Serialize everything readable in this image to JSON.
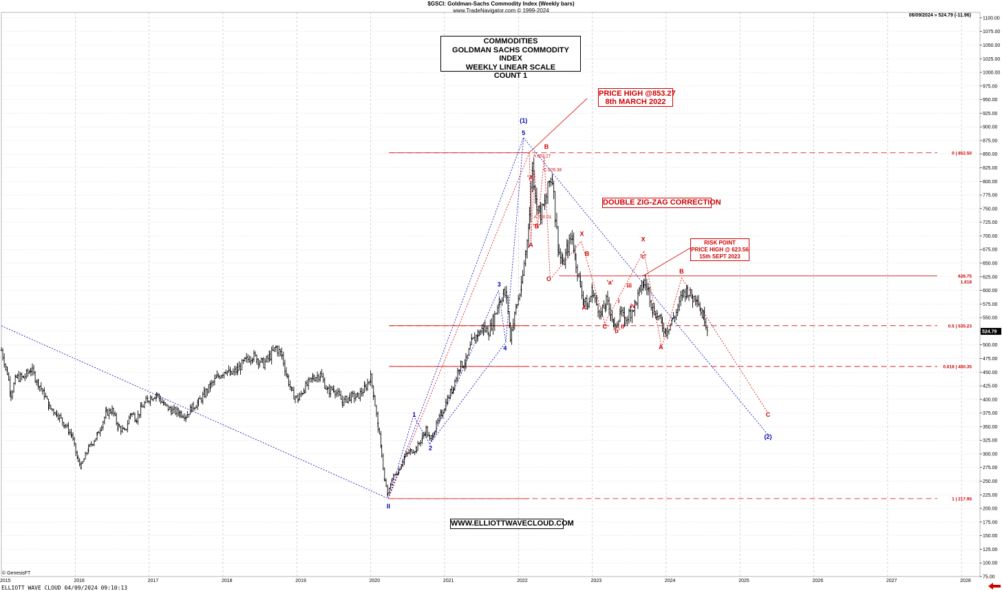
{
  "header": {
    "title": "$GSCI: Goldman-Sachs Commodity Index (Weekly bars)",
    "subtitle": "www.TradeNavigator.com © 1999-2024"
  },
  "last_readout": "06/09/2024 » 524.79 (-11.96)",
  "title_box": [
    "COMMODITIES",
    "GOLDMAN SACHS COMMODITY INDEX",
    "WEEKLY LINEAR SCALE",
    "COUNT 1"
  ],
  "annotations": {
    "price_high": [
      "PRICE HIGH @853.27",
      "8th MARCH 2022"
    ],
    "double_zigzag": "DOUBLE ZIG-ZAG CORRECTION",
    "risk_point": [
      "RISK POINT",
      "PRICE HIGH @ 623.56",
      "15th SEPT 2023"
    ],
    "website": "WWW.ELLIOTTWAVECLOUD.COM"
  },
  "footer": {
    "genesis": "© GenesisFT",
    "label": "ELLIOTT WAVE CLOUD   04/09/2024 09:10:13"
  },
  "colors": {
    "bars": "#000000",
    "accent_red": "#d00000",
    "accent_blue": "#0000b4",
    "grid": "#b4b4b4",
    "last_price_bg": "#000000"
  },
  "icons": {
    "footer_arrow": "left-arrow-icon"
  },
  "chart_data": {
    "type": "ohlc-weekly",
    "title": "$GSCI: Goldman-Sachs Commodity Index (Weekly bars)",
    "xlabel": "",
    "ylabel": "",
    "xlim": [
      2015.0,
      2028.25
    ],
    "ylim": [
      75,
      1110
    ],
    "y_ticks": [
      75,
      100,
      125,
      150,
      175,
      200,
      225,
      250,
      275,
      300,
      325,
      350,
      375,
      400,
      425,
      450,
      475,
      500,
      525,
      550,
      575,
      600,
      625,
      650,
      675,
      700,
      725,
      750,
      775,
      800,
      825,
      850,
      875,
      900,
      925,
      950,
      975,
      1000,
      1025,
      1050,
      1075,
      1100
    ],
    "x_ticks": [
      {
        "x": 2015,
        "label": "2015"
      },
      {
        "x": 2016,
        "label": "2016"
      },
      {
        "x": 2017,
        "label": "2017"
      },
      {
        "x": 2018,
        "label": "2018"
      },
      {
        "x": 2019,
        "label": "2019"
      },
      {
        "x": 2020,
        "label": "2020"
      },
      {
        "x": 2021,
        "label": "2021"
      },
      {
        "x": 2022,
        "label": "2022"
      },
      {
        "x": 2023,
        "label": "2023"
      },
      {
        "x": 2024,
        "label": "2024"
      },
      {
        "x": 2025,
        "label": "2025"
      },
      {
        "x": 2026,
        "label": "2026"
      },
      {
        "x": 2027,
        "label": "2027"
      },
      {
        "x": 2028,
        "label": "2028"
      }
    ],
    "grid": true,
    "price_series": [
      [
        2015.0,
        490
      ],
      [
        2015.08,
        450
      ],
      [
        2015.13,
        410
      ],
      [
        2015.2,
        440
      ],
      [
        2015.3,
        440
      ],
      [
        2015.4,
        455
      ],
      [
        2015.5,
        430
      ],
      [
        2015.58,
        410
      ],
      [
        2015.65,
        385
      ],
      [
        2015.75,
        375
      ],
      [
        2015.85,
        355
      ],
      [
        2015.95,
        335
      ],
      [
        2016.04,
        285
      ],
      [
        2016.08,
        278
      ],
      [
        2016.18,
        310
      ],
      [
        2016.3,
        335
      ],
      [
        2016.42,
        375
      ],
      [
        2016.5,
        380
      ],
      [
        2016.58,
        350
      ],
      [
        2016.67,
        340
      ],
      [
        2016.75,
        375
      ],
      [
        2016.83,
        365
      ],
      [
        2016.9,
        385
      ],
      [
        2016.98,
        400
      ],
      [
        2017.1,
        410
      ],
      [
        2017.2,
        390
      ],
      [
        2017.3,
        380
      ],
      [
        2017.42,
        375
      ],
      [
        2017.5,
        370
      ],
      [
        2017.58,
        385
      ],
      [
        2017.67,
        395
      ],
      [
        2017.75,
        410
      ],
      [
        2017.83,
        425
      ],
      [
        2017.92,
        440
      ],
      [
        2018.04,
        455
      ],
      [
        2018.1,
        445
      ],
      [
        2018.2,
        455
      ],
      [
        2018.3,
        470
      ],
      [
        2018.4,
        480
      ],
      [
        2018.46,
        475
      ],
      [
        2018.55,
        465
      ],
      [
        2018.64,
        480
      ],
      [
        2018.72,
        495
      ],
      [
        2018.8,
        480
      ],
      [
        2018.87,
        440
      ],
      [
        2018.94,
        410
      ],
      [
        2019.02,
        400
      ],
      [
        2019.1,
        420
      ],
      [
        2019.22,
        440
      ],
      [
        2019.32,
        445
      ],
      [
        2019.42,
        415
      ],
      [
        2019.5,
        420
      ],
      [
        2019.62,
        395
      ],
      [
        2019.72,
        405
      ],
      [
        2019.82,
        405
      ],
      [
        2019.92,
        420
      ],
      [
        2020.0,
        440
      ],
      [
        2020.04,
        410
      ],
      [
        2020.1,
        350
      ],
      [
        2020.15,
        300
      ],
      [
        2020.19,
        250
      ],
      [
        2020.23,
        225
      ],
      [
        2020.29,
        255
      ],
      [
        2020.38,
        270
      ],
      [
        2020.46,
        295
      ],
      [
        2020.54,
        305
      ],
      [
        2020.62,
        310
      ],
      [
        2020.7,
        330
      ],
      [
        2020.75,
        345
      ],
      [
        2020.8,
        325
      ],
      [
        2020.87,
        345
      ],
      [
        2020.96,
        375
      ],
      [
        2021.04,
        400
      ],
      [
        2021.12,
        425
      ],
      [
        2021.2,
        460
      ],
      [
        2021.29,
        470
      ],
      [
        2021.37,
        505
      ],
      [
        2021.45,
        520
      ],
      [
        2021.53,
        530
      ],
      [
        2021.6,
        525
      ],
      [
        2021.66,
        545
      ],
      [
        2021.74,
        580
      ],
      [
        2021.8,
        595
      ],
      [
        2021.84,
        590
      ],
      [
        2021.89,
        515
      ],
      [
        2021.93,
        540
      ],
      [
        2021.98,
        575
      ],
      [
        2022.04,
        605
      ],
      [
        2022.1,
        670
      ],
      [
        2022.15,
        740
      ],
      [
        2022.19,
        830
      ],
      [
        2022.21,
        800
      ],
      [
        2022.25,
        760
      ],
      [
        2022.3,
        740
      ],
      [
        2022.36,
        760
      ],
      [
        2022.42,
        800
      ],
      [
        2022.46,
        810
      ],
      [
        2022.5,
        735
      ],
      [
        2022.55,
        670
      ],
      [
        2022.6,
        645
      ],
      [
        2022.67,
        680
      ],
      [
        2022.73,
        700
      ],
      [
        2022.78,
        650
      ],
      [
        2022.84,
        610
      ],
      [
        2022.89,
        580
      ],
      [
        2022.94,
        570
      ],
      [
        2023.0,
        600
      ],
      [
        2023.06,
        575
      ],
      [
        2023.12,
        555
      ],
      [
        2023.19,
        580
      ],
      [
        2023.25,
        560
      ],
      [
        2023.3,
        530
      ],
      [
        2023.38,
        560
      ],
      [
        2023.44,
        545
      ],
      [
        2023.52,
        560
      ],
      [
        2023.58,
        575
      ],
      [
        2023.65,
        600
      ],
      [
        2023.7,
        615
      ],
      [
        2023.76,
        600
      ],
      [
        2023.82,
        565
      ],
      [
        2023.88,
        555
      ],
      [
        2023.95,
        535
      ],
      [
        2024.0,
        525
      ],
      [
        2024.08,
        545
      ],
      [
        2024.16,
        565
      ],
      [
        2024.22,
        595
      ],
      [
        2024.29,
        600
      ],
      [
        2024.36,
        585
      ],
      [
        2024.42,
        590
      ],
      [
        2024.47,
        560
      ],
      [
        2024.52,
        550
      ],
      [
        2024.56,
        530
      ]
    ],
    "horizontal_levels": [
      {
        "value": 852.5,
        "label": "0 | 852.50",
        "style": "dashed",
        "x_start": 2020.25
      },
      {
        "value": 626.75,
        "label": "626.75",
        "label2": "1.618",
        "style": "solid",
        "x_start": 2022.55
      },
      {
        "value": 535.23,
        "label": "0.5 | 535.23",
        "style": "dashed",
        "x_start": 2020.25
      },
      {
        "value": 460.35,
        "label": "0.618 | 460.35",
        "style": "dashed",
        "x_start": 2020.25
      },
      {
        "value": 217.95,
        "label": "1 | 217.95",
        "style": "dashed",
        "x_start": 2020.25
      }
    ],
    "last_price": {
      "value": 524.79,
      "label": "524.79"
    },
    "wave_labels_blue": [
      {
        "x": 2020.24,
        "y": 200,
        "text": "II"
      },
      {
        "x": 2020.59,
        "y": 368,
        "text": "1"
      },
      {
        "x": 2020.81,
        "y": 307,
        "text": "2"
      },
      {
        "x": 2021.74,
        "y": 607,
        "text": "3"
      },
      {
        "x": 2021.82,
        "y": 490,
        "text": "4"
      },
      {
        "x": 2022.07,
        "y": 885,
        "text": "5"
      },
      {
        "x": 2022.07,
        "y": 908,
        "text": "(1)"
      },
      {
        "x": 2025.38,
        "y": 328,
        "text": "(2)"
      }
    ],
    "wave_labels_red": [
      {
        "x": 2022.17,
        "y": 803,
        "text": "'A'"
      },
      {
        "x": 2022.25,
        "y": 714,
        "text": "'B'"
      },
      {
        "x": 2022.17,
        "y": 680,
        "text": "A"
      },
      {
        "x": 2022.38,
        "y": 860,
        "text": "B"
      },
      {
        "x": 2022.41,
        "y": 617,
        "text": "C"
      },
      {
        "x": 2022.86,
        "y": 700,
        "text": "X"
      },
      {
        "x": 2022.93,
        "y": 663,
        "text": "B"
      },
      {
        "x": 2022.89,
        "y": 565,
        "text": "A"
      },
      {
        "x": 2023.17,
        "y": 530,
        "text": "C"
      },
      {
        "x": 2023.24,
        "y": 611,
        "text": "'a'"
      },
      {
        "x": 2023.33,
        "y": 522,
        "text": "'b'"
      },
      {
        "x": 2023.36,
        "y": 577,
        "text": "i"
      },
      {
        "x": 2023.41,
        "y": 530,
        "text": "ii"
      },
      {
        "x": 2023.5,
        "y": 605,
        "text": "iii"
      },
      {
        "x": 2023.55,
        "y": 568,
        "text": "iv"
      },
      {
        "x": 2023.69,
        "y": 690,
        "text": "X"
      },
      {
        "x": 2023.69,
        "y": 658,
        "text": "'c'"
      },
      {
        "x": 2023.93,
        "y": 492,
        "text": "A"
      },
      {
        "x": 2024.21,
        "y": 631,
        "text": "B"
      },
      {
        "x": 2025.38,
        "y": 368,
        "text": "C"
      }
    ],
    "point_labels_red": [
      {
        "x": 2022.2,
        "y": 844,
        "text": "A 853.27"
      },
      {
        "x": 2022.34,
        "y": 819,
        "text": "C 826.38"
      },
      {
        "x": 2022.21,
        "y": 732,
        "text": "A 730.01"
      }
    ],
    "blue_dotted_lines": [
      [
        [
          2015.0,
          535
        ],
        [
          2020.24,
          218
        ]
      ],
      [
        [
          2020.24,
          218
        ],
        [
          2022.07,
          880
        ]
      ],
      [
        [
          2020.24,
          218
        ],
        [
          2020.58,
          370
        ]
      ],
      [
        [
          2020.58,
          370
        ],
        [
          2020.8,
          318
        ]
      ],
      [
        [
          2020.8,
          318
        ],
        [
          2021.73,
          600
        ]
      ],
      [
        [
          2021.73,
          600
        ],
        [
          2021.83,
          505
        ]
      ],
      [
        [
          2021.83,
          505
        ],
        [
          2022.07,
          880
        ]
      ],
      [
        [
          2020.8,
          318
        ],
        [
          2021.83,
          505
        ]
      ],
      [
        [
          2022.07,
          880
        ],
        [
          2025.38,
          335
        ]
      ]
    ],
    "red_dotted_lines": [
      [
        [
          2020.24,
          218
        ],
        [
          2022.15,
          853
        ]
      ],
      [
        [
          2022.15,
          853
        ],
        [
          2022.17,
          690
        ]
      ],
      [
        [
          2022.17,
          690
        ],
        [
          2022.22,
          820
        ]
      ],
      [
        [
          2022.22,
          820
        ],
        [
          2022.26,
          715
        ]
      ],
      [
        [
          2022.26,
          715
        ],
        [
          2022.35,
          845
        ]
      ],
      [
        [
          2022.35,
          845
        ],
        [
          2022.43,
          620
        ]
      ],
      [
        [
          2022.43,
          620
        ],
        [
          2022.85,
          690
        ]
      ],
      [
        [
          2022.85,
          690
        ],
        [
          2022.95,
          645
        ]
      ],
      [
        [
          2022.95,
          645
        ],
        [
          2023.17,
          540
        ]
      ],
      [
        [
          2023.17,
          540
        ],
        [
          2023.7,
          672
        ]
      ],
      [
        [
          2023.7,
          672
        ],
        [
          2023.94,
          495
        ]
      ],
      [
        [
          2023.94,
          495
        ],
        [
          2024.21,
          623
        ]
      ],
      [
        [
          2024.21,
          623
        ],
        [
          2025.38,
          375
        ]
      ]
    ],
    "red_solid_lines": [
      [
        [
          2022.15,
          853
        ],
        [
          2022.93,
          952
        ]
      ],
      [
        [
          2023.68,
          626
        ],
        [
          2024.43,
          686
        ]
      ]
    ]
  }
}
